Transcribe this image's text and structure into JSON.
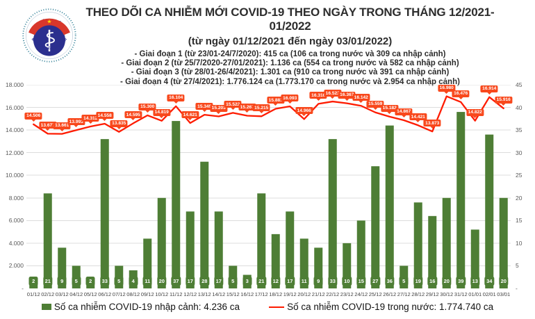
{
  "header": {
    "title_line1": "THEO DÕI CA NHIỄM MỚI COVID-19 THEO NGÀY TRONG THÁNG 12/2021-01/2022",
    "title_line2": "(từ ngày 01/12/2021 đến ngày 03/01/2022)",
    "stages": [
      "- Giai đoạn 1 (từ 23/01-24/7/2020): 415 ca (106 ca trong nước và 309 ca nhập cảnh)",
      "- Giai đoạn 2 (từ 25/7/2020-27/01/2021): 1.136 ca (554 ca trong nước và 582 ca nhập cảnh)",
      "- Giai đoạn 3 (từ 28/01-26/4/2021): 1.301 ca (910 ca trong nước và 391 ca nhập cảnh)",
      "- Giai đoạn 4 (từ 27/4/2021): 1.776.124 ca (1.773.170 ca trong nước và 2.954 ca nhập cảnh)"
    ]
  },
  "logo": {
    "top_text": "BỘ Y TẾ",
    "bottom_text": "MINISTRY OF HEALTH"
  },
  "chart_data": {
    "type": "bar+line combo",
    "title": "THEO DÕI CA NHIỄM MỚI COVID-19 THEO NGÀY TRONG THÁNG 12/2021-01/2022",
    "subtitle": "(từ ngày 01/12/2021 đến ngày 03/01/2022)",
    "categories": [
      "01/12",
      "02/12",
      "03/12",
      "04/12",
      "05/12",
      "06/12",
      "07/12",
      "08/12",
      "09/12",
      "10/12",
      "11/12",
      "12/12",
      "13/12",
      "14/12",
      "15/12",
      "16/12",
      "17/12",
      "18/12",
      "19/12",
      "20/12",
      "21/12",
      "22/12",
      "23/12",
      "24/12",
      "25/12",
      "26/12",
      "27/12",
      "28/12",
      "29/12",
      "30/12",
      "31/12",
      "01/01",
      "02/01",
      "03/01"
    ],
    "series": [
      {
        "name": "Số ca nhiễm COVID-19 nhập cảnh",
        "type": "bar",
        "axis": "right",
        "color": "#4e7e35",
        "values": [
          2,
          21,
          9,
          5,
          2,
          33,
          5,
          4,
          11,
          20,
          37,
          17,
          28,
          17,
          5,
          3,
          21,
          12,
          17,
          11,
          9,
          33,
          10,
          15,
          27,
          36,
          5,
          19,
          16,
          20,
          39,
          13,
          34,
          20
        ]
      },
      {
        "name": "Số ca nhiễm COVID-19 trong nước",
        "type": "line",
        "axis": "left",
        "color": "#fe1b00",
        "values": [
          14506,
          13677,
          13661,
          13993,
          14312,
          14558,
          13835,
          14595,
          15300,
          14819,
          16104,
          14621,
          15349,
          15203,
          15522,
          15267,
          15215,
          15883,
          16093,
          14966,
          16316,
          16522,
          16367,
          16142,
          15559,
          15182,
          14867,
          14421,
          13873,
          16980,
          16476,
          14822,
          16914,
          15916
        ]
      }
    ],
    "left_axis": {
      "min": 0,
      "max": 18000,
      "ticks": [
        {
          "v": 18000,
          "t": "18.000"
        },
        {
          "v": 16000,
          "t": "16.000"
        },
        {
          "v": 14000,
          "t": "14.000"
        },
        {
          "v": 12000,
          "t": "12.000"
        },
        {
          "v": 10000,
          "t": "10.000"
        },
        {
          "v": 8000,
          "t": "8.000"
        },
        {
          "v": 6000,
          "t": "6.000"
        },
        {
          "v": 4000,
          "t": "4.000"
        },
        {
          "v": 2000,
          "t": "2.000"
        },
        {
          "v": 0,
          "t": "-"
        }
      ]
    },
    "right_axis": {
      "min": 0,
      "max": 45,
      "ticks": [
        {
          "v": 45,
          "t": "45"
        },
        {
          "v": 40,
          "t": "40"
        },
        {
          "v": 35,
          "t": "35"
        },
        {
          "v": 30,
          "t": "30"
        },
        {
          "v": 25,
          "t": "25"
        },
        {
          "v": 20,
          "t": "20"
        },
        {
          "v": 15,
          "t": "15"
        },
        {
          "v": 10,
          "t": "10"
        },
        {
          "v": 5,
          "t": "5"
        },
        {
          "v": 0,
          "t": "-"
        }
      ]
    },
    "grid": true,
    "legend_position": "bottom"
  },
  "legend": {
    "bar_label": "Số ca nhiễm COVID-19 nhập cảnh: 4.236 ca",
    "line_label": "Số ca nhiễm COVID-19 trong nước: 1.774.740 ca"
  },
  "colors": {
    "bar_green": "#4e7e35",
    "line_red": "#fe1b00",
    "callout_bg": "#f8481c",
    "grid_gray": "#dcdcdc",
    "axis_text": "#595959",
    "title_text": "#2d2d2d",
    "logo_navy": "#2b2f8e",
    "logo_red": "#d8372b",
    "logo_ring_teal": "#2e7e95",
    "star_yellow": "#ffde00"
  }
}
